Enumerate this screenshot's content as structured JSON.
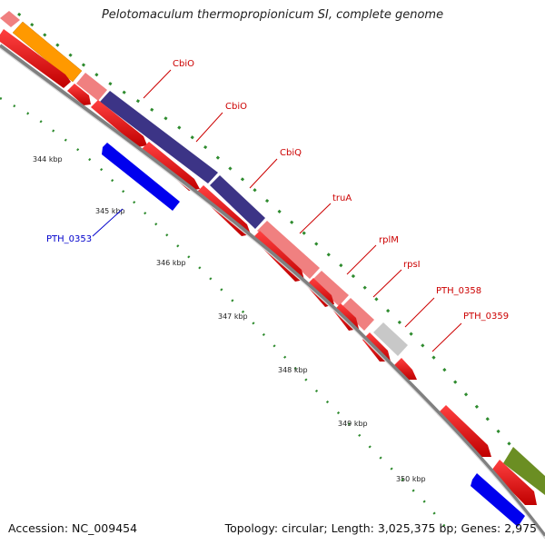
{
  "header": {
    "title": "Pelotomaculum thermopropionicum SI, complete genome"
  },
  "footer": {
    "accession": "Accession: NC_009454",
    "summary": "Topology: circular; Length: 3,025,375 bp; Genes: 2,975"
  },
  "ticks": [
    {
      "label": "344 kbp"
    },
    {
      "label": "345 kbp"
    },
    {
      "label": "346 kbp"
    },
    {
      "label": "347 kbp"
    },
    {
      "label": "348 kbp"
    },
    {
      "label": "349 kbp"
    },
    {
      "label": "350 kbp"
    }
  ],
  "genes": [
    {
      "label": "CbiO",
      "color": "#cc0000"
    },
    {
      "label": "CbiO",
      "color": "#cc0000"
    },
    {
      "label": "CbiQ",
      "color": "#cc0000"
    },
    {
      "label": "truA",
      "color": "#cc0000"
    },
    {
      "label": "rplM",
      "color": "#cc0000"
    },
    {
      "label": "rpsI",
      "color": "#cc0000"
    },
    {
      "label": "PTH_0358",
      "color": "#cc0000"
    },
    {
      "label": "PTH_0359",
      "color": "#cc0000"
    },
    {
      "label": "PTH_0353",
      "color": "#0000cc"
    }
  ],
  "colors": {
    "cds_forward": "#ff0000",
    "cds_reverse": "#0000ff",
    "cog_light_red": "#f08080",
    "cog_orange": "#ff9900",
    "cog_purple": "#3c3486",
    "cog_grey": "#c8c8c8",
    "cog_olive": "#6b8e23",
    "backbone": "#808080",
    "gc_ticks": "#2e8b2e"
  }
}
